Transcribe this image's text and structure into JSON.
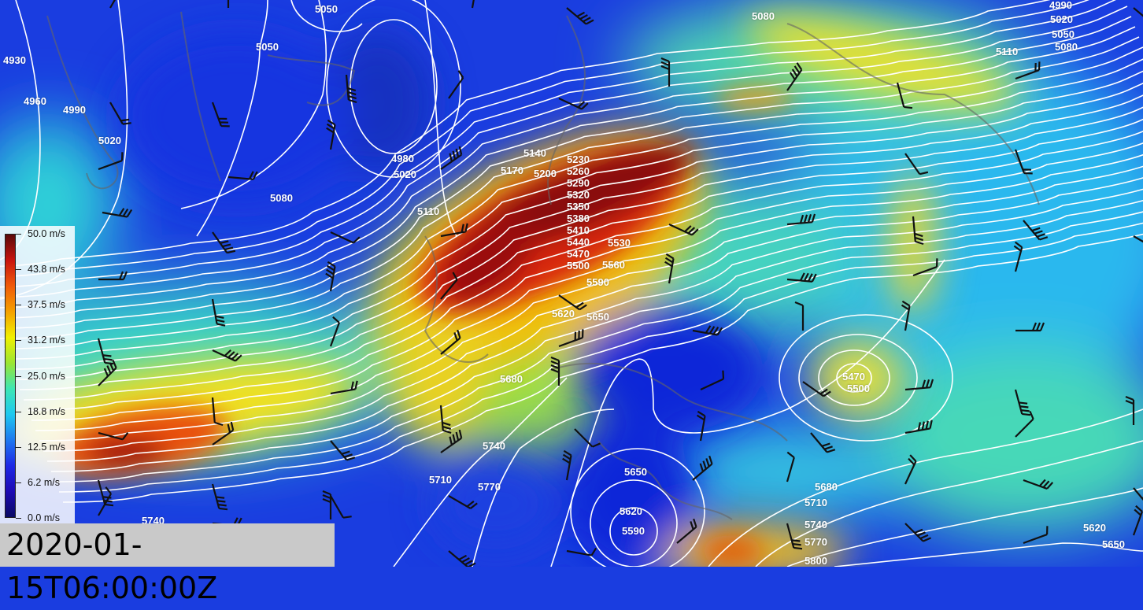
{
  "timestamp": "2020-01-15T06:00:00Z",
  "legend": {
    "unit": "m/s",
    "ticks": [
      "50.0 m/s",
      "43.8 m/s",
      "37.5 m/s",
      "31.2 m/s",
      "25.0 m/s",
      "18.8 m/s",
      "12.5 m/s",
      "6.2 m/s",
      "0.0 m/s"
    ],
    "colors": [
      "#5a0a0a",
      "#c8140f",
      "#f05a0a",
      "#f5a000",
      "#f0f000",
      "#9be632",
      "#3ce6b4",
      "#1ec8f0",
      "#1e78f0",
      "#1e28e6",
      "#1e0ab4",
      "#0a0a64"
    ]
  },
  "field": {
    "variable": "wind speed",
    "contour_color": "#ffffff",
    "barb_color": "#000000",
    "contour_labels": [
      "4930",
      "4960",
      "4990",
      "5020",
      "5050",
      "5050",
      "4980",
      "5020",
      "5080",
      "5110",
      "5080",
      "4990",
      "5020",
      "5050",
      "5080",
      "5110",
      "5140",
      "5170",
      "5200",
      "5230",
      "5260",
      "5290",
      "5320",
      "5350",
      "5380",
      "5410",
      "5440",
      "5470",
      "5500",
      "5530",
      "5560",
      "5590",
      "5620",
      "5650",
      "5680",
      "5740",
      "5710",
      "5770",
      "5740",
      "5650",
      "5620",
      "5590",
      "5680",
      "5710",
      "5740",
      "5770",
      "5800",
      "5470",
      "5500",
      "5620",
      "5650"
    ]
  }
}
